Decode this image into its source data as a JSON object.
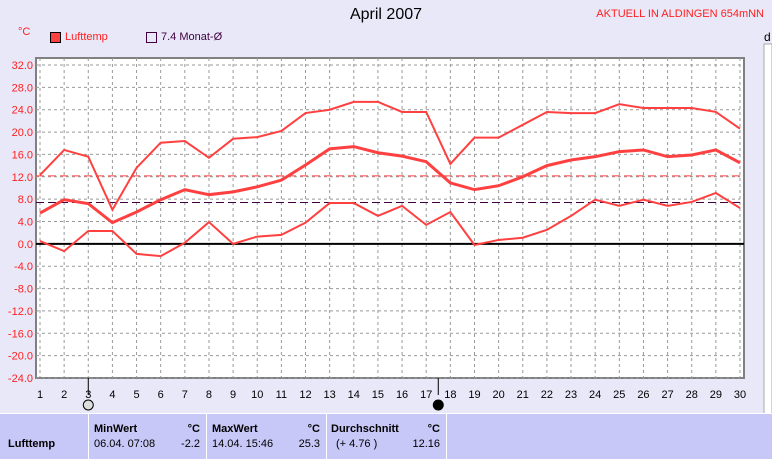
{
  "header": {
    "title": "April 2007",
    "status": "AKTUELL IN ALDINGEN 654mNN",
    "unit": "°C",
    "right_label": "d"
  },
  "legend": [
    {
      "label": "Lufttemp",
      "color": "#ff4040"
    },
    {
      "label": "7.4 Monat-Ø",
      "color": "#400040"
    }
  ],
  "chart_data": {
    "type": "line",
    "title": "April 2007",
    "ylabel": "°C",
    "x": [
      1,
      2,
      3,
      4,
      5,
      6,
      7,
      8,
      9,
      10,
      11,
      12,
      13,
      14,
      15,
      16,
      17,
      18,
      19,
      20,
      21,
      22,
      23,
      24,
      25,
      26,
      27,
      28,
      29,
      30
    ],
    "ylim": [
      -24,
      32
    ],
    "yticks": [
      "32.0",
      "28.0",
      "24.0",
      "20.0",
      "16.0",
      "12.0",
      "8.0",
      "4.0",
      "0.0",
      "-4.0",
      "-8.0",
      "-12.0",
      "-16.0",
      "-20.0",
      "-24.0"
    ],
    "grid": true,
    "series": [
      {
        "role": "max",
        "color": "#ff4040",
        "values": [
          12.3,
          16.8,
          15.6,
          6.1,
          13.6,
          18.1,
          18.4,
          15.4,
          18.8,
          19.1,
          20.2,
          23.4,
          24.0,
          25.4,
          25.4,
          23.6,
          23.6,
          14.3,
          19.0,
          19.0,
          21.3,
          23.6,
          23.4,
          23.4,
          25.0,
          24.3,
          24.3,
          24.3,
          23.6,
          20.6
        ]
      },
      {
        "role": "mean",
        "color": "#ff4040",
        "values": [
          5.5,
          7.9,
          7.2,
          3.8,
          5.7,
          7.9,
          9.7,
          8.8,
          9.3,
          10.2,
          11.4,
          14.1,
          17.0,
          17.4,
          16.3,
          15.7,
          14.7,
          10.9,
          9.7,
          10.4,
          12.0,
          14.0,
          15.0,
          15.6,
          16.5,
          16.8,
          15.6,
          15.9,
          16.8,
          14.5
        ]
      },
      {
        "role": "min",
        "color": "#ff4040",
        "values": [
          0.5,
          -1.3,
          2.3,
          2.3,
          -1.8,
          -2.2,
          0.2,
          3.9,
          0.0,
          1.3,
          1.6,
          3.8,
          7.3,
          7.3,
          5.0,
          6.8,
          3.4,
          5.7,
          -0.2,
          0.7,
          1.1,
          2.5,
          5.0,
          7.9,
          6.8,
          7.9,
          6.8,
          7.5,
          9.1,
          6.4
        ]
      }
    ],
    "reference_lines": [
      {
        "value": 12.16,
        "color": "#ff4040"
      },
      {
        "value": 7.4,
        "color": "#400040"
      }
    ],
    "moon_phases": [
      {
        "day": 3,
        "phase": "full"
      },
      {
        "day": 17.5,
        "phase": "new"
      }
    ]
  },
  "stats": {
    "row_label": "Lufttemp",
    "min": {
      "header": "MinWert",
      "unit": "°C",
      "date": "06.04.  07:08",
      "value": "-2.2"
    },
    "max": {
      "header": "MaxWert",
      "unit": "°C",
      "date": "14.04.  15:46",
      "value": "25.3"
    },
    "avg": {
      "header": "Durchschnitt",
      "unit": "°C",
      "delta": "(+ 4.76 )",
      "value": "12.16"
    }
  }
}
